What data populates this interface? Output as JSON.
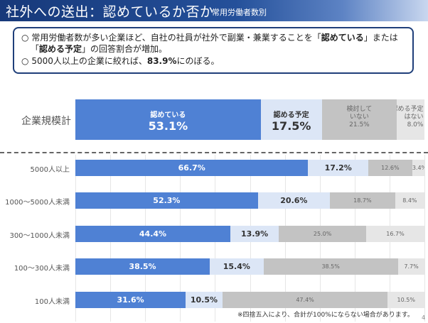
{
  "header": {
    "title": "社外への送出：認めているか否か",
    "subtitle": "常用労働者数別"
  },
  "callout": {
    "bullet_symbol": "○",
    "bullet1_pre": "常用労働者数が多い企業ほど、自社の社員が社外で副業・兼業することを「",
    "bullet1_bold1": "認めている",
    "bullet1_mid": "」または",
    "bullet1_line2_pre": "「",
    "bullet1_bold2": "認める予定",
    "bullet1_post": "」の回答割合が増加。",
    "bullet2_pre": "5000人以上の企業に絞れば、",
    "bullet2_bold": "83.9%",
    "bullet2_post": "にのぼる。"
  },
  "chart_data": {
    "type": "bar",
    "orientation": "horizontal",
    "stacked": true,
    "xlim": [
      0,
      100
    ],
    "grid": true,
    "summary": {
      "label": "企業規模計",
      "segments": [
        {
          "name": "認めている",
          "value": 53.1,
          "label": "53.1%"
        },
        {
          "name": "認める予定",
          "value": 17.5,
          "label": "17.5%"
        },
        {
          "name": "検討していない",
          "name_lines": [
            "検討して",
            "いない"
          ],
          "value": 21.5,
          "label": "21.5%"
        },
        {
          "name": "認める予定はない",
          "name_lines": [
            "認める予定",
            "はない"
          ],
          "value": 8.0,
          "label": "8.0%"
        }
      ]
    },
    "categories": [
      "5000人以上",
      "1000～5000人未満",
      "300～1000人未満",
      "100～300人未満",
      "100人未満"
    ],
    "series": [
      {
        "name": "認めている",
        "color": "#4f81d4",
        "values": [
          66.7,
          52.3,
          44.4,
          38.5,
          31.6
        ]
      },
      {
        "name": "認める予定",
        "color": "#dce6f6",
        "values": [
          17.2,
          20.6,
          13.9,
          15.4,
          10.5
        ]
      },
      {
        "name": "検討していない",
        "color": "#c3c3c3",
        "values": [
          12.6,
          18.7,
          25.0,
          38.5,
          47.4
        ]
      },
      {
        "name": "認める予定はない",
        "color": "#e6e6e6",
        "values": [
          3.4,
          8.4,
          16.7,
          7.7,
          10.5
        ]
      }
    ]
  },
  "footnote": "※四捨五入により、合計が100%にならない場合があります。",
  "page_number": "4"
}
